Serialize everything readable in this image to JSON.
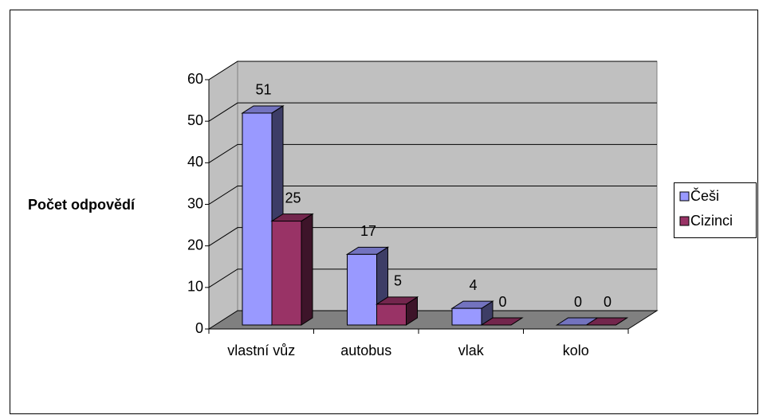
{
  "chart_data": {
    "type": "bar3d",
    "y_axis_label": "Počet odpovědí",
    "categories": [
      "vlastní vůz",
      "autobus",
      "vlak",
      "kolo"
    ],
    "series": [
      {
        "name": "Češi",
        "color": "#9999ff",
        "values": [
          51,
          17,
          4,
          0
        ]
      },
      {
        "name": "Cizinci",
        "color": "#993366",
        "values": [
          25,
          5,
          0,
          0
        ]
      }
    ],
    "ylim": [
      0,
      60
    ],
    "yticks": [
      0,
      10,
      20,
      30,
      40,
      50,
      60
    ],
    "grid": true,
    "legend": "right"
  }
}
